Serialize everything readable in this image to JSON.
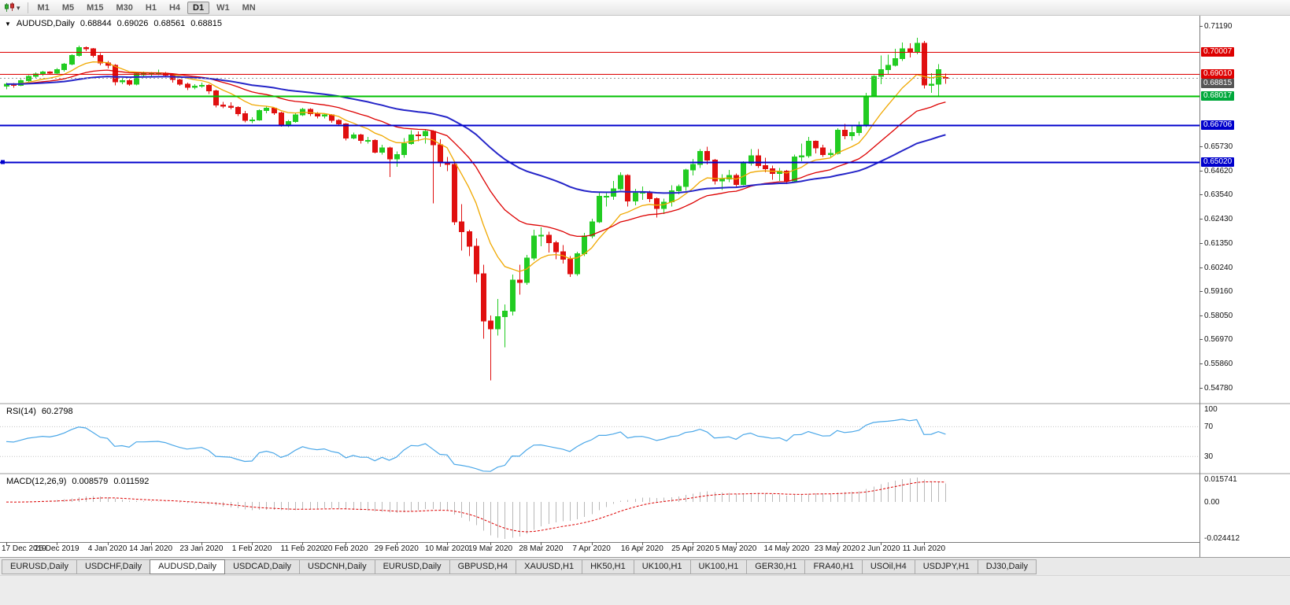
{
  "toolbar": {
    "timeframes": [
      "M1",
      "M5",
      "M15",
      "M30",
      "H1",
      "H4",
      "D1",
      "W1",
      "MN"
    ],
    "active_timeframe": "D1",
    "caret_glyph": "▾"
  },
  "chart": {
    "symbol_period": "AUDUSD,Daily",
    "collapse_glyph": "▼",
    "ohlc": {
      "open": "0.68844",
      "high": "0.69026",
      "low": "0.68561",
      "close": "0.68815"
    }
  },
  "price_scale": {
    "plain_labels": [
      "0.71190",
      "0.65730",
      "0.64620",
      "0.63540",
      "0.62430",
      "0.61350",
      "0.60240",
      "0.59160",
      "0.58050",
      "0.56970",
      "0.55860",
      "0.54780"
    ],
    "badges": [
      {
        "text": "0.70007",
        "price": 0.70007,
        "color": "#dd0000"
      },
      {
        "text": "0.69010",
        "price": 0.6901,
        "color": "#dd0000"
      },
      {
        "text": "0.68815",
        "price": 0.68815,
        "color": "#555555"
      },
      {
        "text": "0.68017",
        "price": 0.68017,
        "color": "#00a83b"
      },
      {
        "text": "0.66706",
        "price": 0.66706,
        "color": "#0000cc"
      },
      {
        "text": "0.65020",
        "price": 0.6502,
        "color": "#0000cc"
      }
    ]
  },
  "indicators": {
    "rsi": {
      "name": "RSI(14)",
      "value": "60.2798",
      "color": "#4aa7e8",
      "period": 14,
      "levels": [
        {
          "text": "100",
          "value": 100,
          "pin": "top",
          "line": false
        },
        {
          "text": "70",
          "value": 70,
          "line": true
        },
        {
          "text": "30",
          "value": 30,
          "line": true
        }
      ]
    },
    "macd": {
      "name": "MACD(12,26,9)",
      "main_value": "0.008579",
      "signal_value": "0.011592",
      "scale_top": "0.015741",
      "scale_zero": "0.00",
      "scale_bottom": "-0.024412",
      "histogram_color": "#b8b8b8",
      "signal_color": "#dd0000"
    }
  },
  "time_axis": {
    "labels": [
      {
        "text": "17 Dec 2019",
        "bar": 0
      },
      {
        "text": "26 Dec 2019",
        "bar": 7
      },
      {
        "text": "4 Jan 2020",
        "bar": 14
      },
      {
        "text": "14 Jan 2020",
        "bar": 20
      },
      {
        "text": "23 Jan 2020",
        "bar": 27
      },
      {
        "text": "1 Feb 2020",
        "bar": 34
      },
      {
        "text": "11 Feb 2020",
        "bar": 41
      },
      {
        "text": "20 Feb 2020",
        "bar": 47
      },
      {
        "text": "29 Feb 2020",
        "bar": 54
      },
      {
        "text": "10 Mar 2020",
        "bar": 61
      },
      {
        "text": "19 Mar 2020",
        "bar": 67
      },
      {
        "text": "28 Mar 2020",
        "bar": 74
      },
      {
        "text": "7 Apr 2020",
        "bar": 81
      },
      {
        "text": "16 Apr 2020",
        "bar": 88
      },
      {
        "text": "25 Apr 2020",
        "bar": 95
      },
      {
        "text": "5 May 2020",
        "bar": 101
      },
      {
        "text": "14 May 2020",
        "bar": 108
      },
      {
        "text": "23 May 2020",
        "bar": 115
      },
      {
        "text": "2 Jun 2020",
        "bar": 121
      },
      {
        "text": "11 Jun 2020",
        "bar": 127
      }
    ]
  },
  "tabs": {
    "active_index": 2,
    "items": [
      "EURUSD,Daily",
      "USDCHF,Daily",
      "AUDUSD,Daily",
      "USDCAD,Daily",
      "USDCNH,Daily",
      "EURUSD,Daily",
      "GBPUSD,H4",
      "XAUUSD,H1",
      "HK50,H1",
      "UK100,H1",
      "UK100,H1",
      "GER30,H1",
      "FRA40,H1",
      "USOil,H4",
      "USDJPY,H1",
      "DJ30,Daily"
    ]
  },
  "chart_data": {
    "type": "candlestick",
    "symbol": "AUDUSD",
    "timeframe": "Daily",
    "price_axis": {
      "min": 0.5409,
      "max": 0.7165
    },
    "bull_color": "#22cc22",
    "bear_color": "#e01010",
    "moving_averages": [
      {
        "period": 10,
        "color": "#f0a800",
        "width": 1.3
      },
      {
        "period": 24,
        "color": "#dd0000",
        "width": 1.3
      },
      {
        "period": 55,
        "color": "#2525c8",
        "width": 2
      }
    ],
    "horizontal_lines": [
      {
        "price": 0.70007,
        "color": "#dd0000",
        "width": 1
      },
      {
        "price": 0.6901,
        "color": "#dd0000",
        "width": 1
      },
      {
        "price": 0.68815,
        "color": "#999999",
        "width": 1,
        "dash": "2 3"
      },
      {
        "price": 0.68017,
        "color": "#00c000",
        "width": 2
      },
      {
        "price": 0.66706,
        "color": "#0000cc",
        "width": 2
      },
      {
        "price": 0.6502,
        "color": "#0000cc",
        "width": 2,
        "anchor": true
      }
    ],
    "rsi_period": 14,
    "macd": {
      "fast": 12,
      "slow": 26,
      "signal": 9
    },
    "candles": [
      [
        0.6845,
        0.6862,
        0.6832,
        0.6855
      ],
      [
        0.6855,
        0.686,
        0.6838,
        0.685
      ],
      [
        0.685,
        0.6878,
        0.6845,
        0.687
      ],
      [
        0.687,
        0.6895,
        0.6862,
        0.689
      ],
      [
        0.689,
        0.6908,
        0.688,
        0.69
      ],
      [
        0.69,
        0.6915,
        0.6892,
        0.691
      ],
      [
        0.691,
        0.6914,
        0.69,
        0.6905
      ],
      [
        0.6905,
        0.6928,
        0.6898,
        0.692
      ],
      [
        0.692,
        0.695,
        0.6912,
        0.6945
      ],
      [
        0.6945,
        0.699,
        0.694,
        0.6985
      ],
      [
        0.6985,
        0.703,
        0.698,
        0.7021
      ],
      [
        0.7021,
        0.7025,
        0.7005,
        0.7015
      ],
      [
        0.7015,
        0.7018,
        0.6975,
        0.6985
      ],
      [
        0.6985,
        0.6995,
        0.694,
        0.695
      ],
      [
        0.695,
        0.696,
        0.6925,
        0.694
      ],
      [
        0.694,
        0.6945,
        0.685,
        0.6865
      ],
      [
        0.6865,
        0.688,
        0.6855,
        0.687
      ],
      [
        0.687,
        0.6878,
        0.6848,
        0.6855
      ],
      [
        0.6855,
        0.6905,
        0.685,
        0.69
      ],
      [
        0.69,
        0.6912,
        0.6888,
        0.69
      ],
      [
        0.69,
        0.691,
        0.689,
        0.6902
      ],
      [
        0.6902,
        0.692,
        0.6895,
        0.6905
      ],
      [
        0.6905,
        0.691,
        0.6885,
        0.6895
      ],
      [
        0.6895,
        0.69,
        0.6862,
        0.6875
      ],
      [
        0.6875,
        0.688,
        0.6848,
        0.6855
      ],
      [
        0.6855,
        0.6862,
        0.6827,
        0.684
      ],
      [
        0.684,
        0.6855,
        0.6832,
        0.6845
      ],
      [
        0.6845,
        0.6862,
        0.6838,
        0.685
      ],
      [
        0.685,
        0.6855,
        0.681,
        0.6825
      ],
      [
        0.6825,
        0.683,
        0.675,
        0.676
      ],
      [
        0.676,
        0.6775,
        0.6745,
        0.6755
      ],
      [
        0.6755,
        0.6772,
        0.674,
        0.675
      ],
      [
        0.675,
        0.6755,
        0.671,
        0.672
      ],
      [
        0.672,
        0.6733,
        0.6682,
        0.669
      ],
      [
        0.669,
        0.6705,
        0.6678,
        0.6692
      ],
      [
        0.6692,
        0.674,
        0.6688,
        0.6735
      ],
      [
        0.6735,
        0.6752,
        0.6722,
        0.6745
      ],
      [
        0.6745,
        0.675,
        0.6715,
        0.6725
      ],
      [
        0.6725,
        0.673,
        0.6662,
        0.667
      ],
      [
        0.667,
        0.6692,
        0.666,
        0.6685
      ],
      [
        0.6685,
        0.6722,
        0.668,
        0.6715
      ],
      [
        0.6715,
        0.6748,
        0.671,
        0.674
      ],
      [
        0.674,
        0.6745,
        0.671,
        0.672
      ],
      [
        0.672,
        0.6728,
        0.67,
        0.671
      ],
      [
        0.671,
        0.6722,
        0.67,
        0.6715
      ],
      [
        0.6715,
        0.6718,
        0.668,
        0.669
      ],
      [
        0.669,
        0.6695,
        0.6665,
        0.6675
      ],
      [
        0.6675,
        0.6678,
        0.66,
        0.661
      ],
      [
        0.661,
        0.6635,
        0.6605,
        0.6625
      ],
      [
        0.6625,
        0.663,
        0.6585,
        0.66
      ],
      [
        0.66,
        0.6615,
        0.6585,
        0.66
      ],
      [
        0.66,
        0.6605,
        0.654,
        0.6545
      ],
      [
        0.6545,
        0.658,
        0.6535,
        0.6565
      ],
      [
        0.6565,
        0.657,
        0.6434,
        0.6515
      ],
      [
        0.6515,
        0.655,
        0.648,
        0.6535
      ],
      [
        0.6535,
        0.661,
        0.652,
        0.6585
      ],
      [
        0.6585,
        0.6645,
        0.658,
        0.6625
      ],
      [
        0.6625,
        0.664,
        0.6595,
        0.662
      ],
      [
        0.662,
        0.665,
        0.6585,
        0.664
      ],
      [
        0.664,
        0.6645,
        0.6313,
        0.658
      ],
      [
        0.658,
        0.6605,
        0.648,
        0.65
      ],
      [
        0.65,
        0.6525,
        0.646,
        0.649
      ],
      [
        0.649,
        0.6495,
        0.6215,
        0.623
      ],
      [
        0.623,
        0.631,
        0.61,
        0.6185
      ],
      [
        0.6185,
        0.6195,
        0.6075,
        0.612
      ],
      [
        0.612,
        0.6155,
        0.5955,
        0.5995
      ],
      [
        0.5995,
        0.6035,
        0.57,
        0.578
      ],
      [
        0.578,
        0.5805,
        0.551,
        0.5745
      ],
      [
        0.5745,
        0.588,
        0.5715,
        0.58
      ],
      [
        0.58,
        0.5855,
        0.566,
        0.5825
      ],
      [
        0.5825,
        0.599,
        0.5805,
        0.5965
      ],
      [
        0.5965,
        0.6035,
        0.59,
        0.5955
      ],
      [
        0.5955,
        0.608,
        0.5945,
        0.6065
      ],
      [
        0.6065,
        0.6195,
        0.6055,
        0.6165
      ],
      [
        0.6165,
        0.6205,
        0.612,
        0.617
      ],
      [
        0.617,
        0.6185,
        0.609,
        0.6135
      ],
      [
        0.6135,
        0.6145,
        0.606,
        0.6095
      ],
      [
        0.6095,
        0.6125,
        0.604,
        0.606
      ],
      [
        0.606,
        0.6075,
        0.598,
        0.5995
      ],
      [
        0.5995,
        0.6095,
        0.5985,
        0.6085
      ],
      [
        0.6085,
        0.618,
        0.6075,
        0.6165
      ],
      [
        0.6165,
        0.6245,
        0.6155,
        0.623
      ],
      [
        0.623,
        0.6365,
        0.6225,
        0.6345
      ],
      [
        0.6345,
        0.636,
        0.63,
        0.6345
      ],
      [
        0.6345,
        0.6415,
        0.633,
        0.638
      ],
      [
        0.638,
        0.6455,
        0.6375,
        0.644
      ],
      [
        0.644,
        0.6445,
        0.63,
        0.6325
      ],
      [
        0.6325,
        0.638,
        0.6305,
        0.636
      ],
      [
        0.636,
        0.639,
        0.633,
        0.6365
      ],
      [
        0.6365,
        0.637,
        0.632,
        0.6335
      ],
      [
        0.6335,
        0.634,
        0.625,
        0.629
      ],
      [
        0.629,
        0.6335,
        0.6265,
        0.632
      ],
      [
        0.632,
        0.6395,
        0.63,
        0.637
      ],
      [
        0.637,
        0.64,
        0.6355,
        0.639
      ],
      [
        0.639,
        0.647,
        0.637,
        0.6465
      ],
      [
        0.6465,
        0.6515,
        0.644,
        0.649
      ],
      [
        0.649,
        0.656,
        0.6475,
        0.655
      ],
      [
        0.655,
        0.657,
        0.649,
        0.651
      ],
      [
        0.651,
        0.6515,
        0.64,
        0.6415
      ],
      [
        0.6415,
        0.6445,
        0.6375,
        0.6425
      ],
      [
        0.6425,
        0.6465,
        0.641,
        0.644
      ],
      [
        0.644,
        0.645,
        0.639,
        0.64
      ],
      [
        0.64,
        0.6505,
        0.6395,
        0.6495
      ],
      [
        0.6495,
        0.656,
        0.6485,
        0.653
      ],
      [
        0.653,
        0.656,
        0.6475,
        0.6485
      ],
      [
        0.6485,
        0.652,
        0.6455,
        0.647
      ],
      [
        0.647,
        0.6485,
        0.642,
        0.645
      ],
      [
        0.645,
        0.6475,
        0.6415,
        0.646
      ],
      [
        0.646,
        0.6465,
        0.6402,
        0.6415
      ],
      [
        0.6415,
        0.6535,
        0.641,
        0.6525
      ],
      [
        0.6525,
        0.6585,
        0.6505,
        0.653
      ],
      [
        0.653,
        0.6615,
        0.652,
        0.6595
      ],
      [
        0.6595,
        0.66,
        0.654,
        0.6565
      ],
      [
        0.6565,
        0.658,
        0.6525,
        0.6535
      ],
      [
        0.6535,
        0.656,
        0.652,
        0.654
      ],
      [
        0.654,
        0.6655,
        0.6535,
        0.6645
      ],
      [
        0.6645,
        0.6675,
        0.6605,
        0.662
      ],
      [
        0.662,
        0.6665,
        0.66,
        0.6635
      ],
      [
        0.6635,
        0.6685,
        0.662,
        0.6665
      ],
      [
        0.6665,
        0.6815,
        0.666,
        0.68
      ],
      [
        0.68,
        0.6895,
        0.6795,
        0.689
      ],
      [
        0.689,
        0.6985,
        0.6855,
        0.692
      ],
      [
        0.692,
        0.6988,
        0.69,
        0.694
      ],
      [
        0.694,
        0.7015,
        0.6935,
        0.697
      ],
      [
        0.697,
        0.7043,
        0.696,
        0.7015
      ],
      [
        0.7015,
        0.704,
        0.6975,
        0.7
      ],
      [
        0.7,
        0.7065,
        0.699,
        0.704
      ],
      [
        0.704,
        0.705,
        0.6835,
        0.685
      ],
      [
        0.685,
        0.6905,
        0.6815,
        0.6855
      ],
      [
        0.6855,
        0.6945,
        0.68,
        0.692
      ],
      [
        0.68844,
        0.69026,
        0.68561,
        0.68815
      ]
    ]
  }
}
